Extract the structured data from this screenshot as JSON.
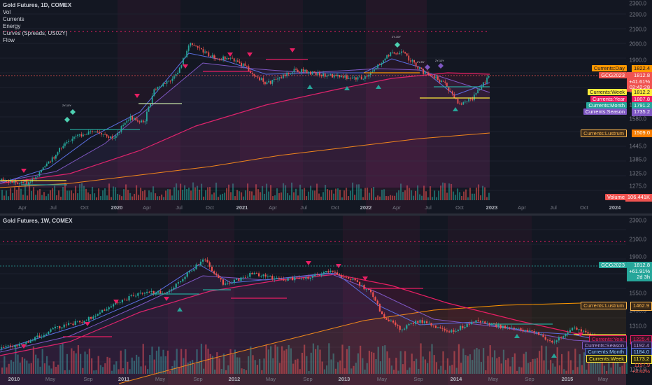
{
  "top": {
    "title": "Gold Futures, 1D, COMEX",
    "indicators": [
      "Vol",
      "Currents",
      "Energy",
      "Curves (Spreads, US02Y)",
      "Flow"
    ],
    "yticks": [
      "2300.0",
      "2200.0",
      "2100.0",
      "2000.0",
      "1900.0",
      "1820.0",
      "1700.0",
      "1640.0",
      "1580.0",
      "1445.0",
      "1385.0",
      "1325.0",
      "1275.0"
    ],
    "xticks": [
      {
        "t": "Apr",
        "b": false
      },
      {
        "t": "Jul",
        "b": false
      },
      {
        "t": "Oct",
        "b": false
      },
      {
        "t": "2020",
        "b": true
      },
      {
        "t": "Apr",
        "b": false
      },
      {
        "t": "Jul",
        "b": false
      },
      {
        "t": "Oct",
        "b": false
      },
      {
        "t": "2021",
        "b": true
      },
      {
        "t": "Apr",
        "b": false
      },
      {
        "t": "Jul",
        "b": false
      },
      {
        "t": "Oct",
        "b": false
      },
      {
        "t": "2022",
        "b": true
      },
      {
        "t": "Apr",
        "b": false
      },
      {
        "t": "Jul",
        "b": false
      },
      {
        "t": "Oct",
        "b": false
      },
      {
        "t": "2023",
        "b": true
      },
      {
        "t": "Apr",
        "b": false
      },
      {
        "t": "Jul",
        "b": false
      },
      {
        "t": "Oct",
        "b": false
      },
      {
        "t": "2024",
        "b": true
      }
    ],
    "tags": {
      "day": "Currents:Day",
      "day_val": "1822.4",
      "symbol": "GCG2023",
      "price": "1812.8",
      "change": "+41.61%",
      "countdown": "02:42:28",
      "week": "Currents:Week",
      "week_val": "1812.2",
      "year": "Currents:Year",
      "year_val": "1807.8",
      "month": "Currents:Month",
      "month_val": "1791.2",
      "season": "Currents:Season",
      "season_val": "1735.2",
      "lustrum": "Currents:Lustrum",
      "lustrum_val": "1509.0",
      "volume": "Volume",
      "volume_val": "106.441K"
    },
    "annotations": [
      "2Y-10Y",
      "2Y-10Y",
      "2Y-5Y",
      "2Y-10Y"
    ]
  },
  "bottom": {
    "title": "Gold Futures, 1W, COMEX",
    "yticks": [
      "2300.0",
      "2100.0",
      "1900.0",
      "1550.0",
      "1430.0",
      "1310.0",
      "1250.0",
      "1157.9"
    ],
    "xticks": [
      {
        "t": "2010",
        "b": true
      },
      {
        "t": "May",
        "b": false
      },
      {
        "t": "Sep",
        "b": false
      },
      {
        "t": "2011",
        "b": true
      },
      {
        "t": "May",
        "b": false
      },
      {
        "t": "Sep",
        "b": false
      },
      {
        "t": "2012",
        "b": true
      },
      {
        "t": "May",
        "b": false
      },
      {
        "t": "Sep",
        "b": false
      },
      {
        "t": "2013",
        "b": true
      },
      {
        "t": "May",
        "b": false
      },
      {
        "t": "Sep",
        "b": false
      },
      {
        "t": "2014",
        "b": true
      },
      {
        "t": "May",
        "b": false
      },
      {
        "t": "Sep",
        "b": false
      },
      {
        "t": "2015",
        "b": true
      },
      {
        "t": "May",
        "b": false
      }
    ],
    "tags": {
      "symbol": "GCG2023",
      "price": "1812.8",
      "change": "+61.91%",
      "countdown": "2d 3h",
      "lustrum": "Currents:Lustrum",
      "lustrum_val": "1462.9",
      "year": "Currents:Year",
      "year_val": "1225.4",
      "season": "Currents:Season",
      "season_val": "1192.4",
      "month": "Currents:Month",
      "month_val": "1184.0",
      "week": "Currents:Week",
      "week_val": "1173.2",
      "extra_val": "1157.9",
      "extra_change": "+3.42%"
    }
  },
  "colors": {
    "bg": "#131722",
    "up": "#26a69a",
    "down": "#ef5350",
    "magenta": "#e91e63",
    "teal": "#4dd0b1",
    "orange": "#ff9800",
    "purple": "#7e57c2",
    "blue": "#5b6ee1",
    "yellow": "#ffeb3b",
    "lustrum": "#ffb74d"
  }
}
